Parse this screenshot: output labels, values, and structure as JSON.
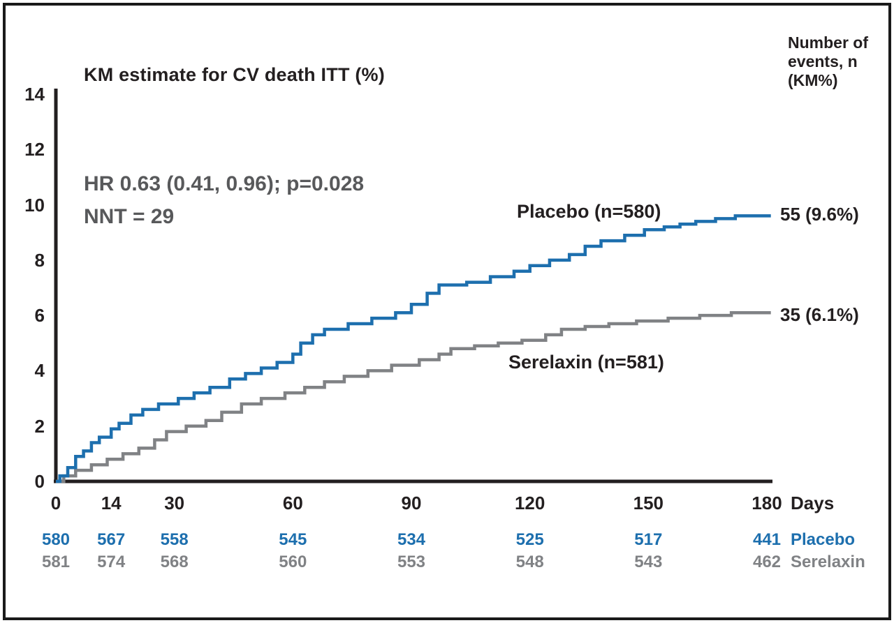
{
  "title": "KM estimate for CV death ITT (%)",
  "events_header": {
    "lines": [
      "Number of",
      "events, n",
      "(KM%)"
    ]
  },
  "stats": {
    "hr_line": "HR 0.63 (0.41, 0.96); p=0.028",
    "nnt_line": "NNT = 29"
  },
  "colors": {
    "placebo_blue": "#1d6fae",
    "serelaxin_gray": "#808285",
    "axis_black": "#231f20",
    "stat_gray": "#58595b",
    "frame_black": "#1a1a1a"
  },
  "chart_data": {
    "type": "line",
    "subtype": "kaplan-meier-step",
    "title": "KM estimate for CV death ITT (%)",
    "xlabel": "Days",
    "ylabel": "KM estimate for CV death ITT (%)",
    "xlim": [
      0,
      183
    ],
    "ylim": [
      0,
      14
    ],
    "x_ticks": [
      0,
      14,
      30,
      60,
      90,
      120,
      150,
      180
    ],
    "y_ticks": [
      0,
      2,
      4,
      6,
      8,
      10,
      12,
      14
    ],
    "grid": false,
    "legend_position": "in-plot labels + risk-table right",
    "series": [
      {
        "name": "Placebo",
        "curve_label": "Placebo (n=580)",
        "end_label": "55 (9.6%)",
        "color": "#1d6fae",
        "points": [
          [
            0,
            0
          ],
          [
            1,
            0.2
          ],
          [
            3,
            0.5
          ],
          [
            5,
            0.9
          ],
          [
            7,
            1.1
          ],
          [
            9,
            1.4
          ],
          [
            11,
            1.6
          ],
          [
            14,
            1.9
          ],
          [
            16,
            2.1
          ],
          [
            19,
            2.4
          ],
          [
            22,
            2.6
          ],
          [
            26,
            2.8
          ],
          [
            31,
            3.0
          ],
          [
            35,
            3.2
          ],
          [
            39,
            3.4
          ],
          [
            44,
            3.7
          ],
          [
            48,
            3.9
          ],
          [
            52,
            4.1
          ],
          [
            56,
            4.3
          ],
          [
            60,
            4.6
          ],
          [
            62,
            5.0
          ],
          [
            65,
            5.3
          ],
          [
            68,
            5.5
          ],
          [
            74,
            5.7
          ],
          [
            80,
            5.9
          ],
          [
            86,
            6.1
          ],
          [
            90,
            6.4
          ],
          [
            94,
            6.8
          ],
          [
            97,
            7.1
          ],
          [
            104,
            7.2
          ],
          [
            110,
            7.4
          ],
          [
            116,
            7.6
          ],
          [
            120,
            7.8
          ],
          [
            125,
            8.0
          ],
          [
            130,
            8.2
          ],
          [
            134,
            8.5
          ],
          [
            138,
            8.7
          ],
          [
            144,
            8.9
          ],
          [
            149,
            9.1
          ],
          [
            154,
            9.2
          ],
          [
            158,
            9.3
          ],
          [
            162,
            9.4
          ],
          [
            167,
            9.5
          ],
          [
            172,
            9.6
          ],
          [
            181,
            9.6
          ]
        ]
      },
      {
        "name": "Serelaxin",
        "curve_label": "Serelaxin (n=581)",
        "end_label": "35 (6.1%)",
        "color": "#808285",
        "points": [
          [
            0,
            0
          ],
          [
            2,
            0.2
          ],
          [
            5,
            0.4
          ],
          [
            9,
            0.6
          ],
          [
            13,
            0.8
          ],
          [
            17,
            1.0
          ],
          [
            21,
            1.2
          ],
          [
            25,
            1.5
          ],
          [
            28,
            1.8
          ],
          [
            33,
            2.0
          ],
          [
            38,
            2.2
          ],
          [
            42,
            2.5
          ],
          [
            47,
            2.8
          ],
          [
            52,
            3.0
          ],
          [
            58,
            3.2
          ],
          [
            63,
            3.4
          ],
          [
            68,
            3.6
          ],
          [
            73,
            3.8
          ],
          [
            79,
            4.0
          ],
          [
            85,
            4.2
          ],
          [
            92,
            4.4
          ],
          [
            97,
            4.6
          ],
          [
            100,
            4.8
          ],
          [
            106,
            4.9
          ],
          [
            112,
            5.0
          ],
          [
            118,
            5.1
          ],
          [
            124,
            5.3
          ],
          [
            128,
            5.5
          ],
          [
            134,
            5.6
          ],
          [
            140,
            5.7
          ],
          [
            147,
            5.8
          ],
          [
            155,
            5.9
          ],
          [
            163,
            6.0
          ],
          [
            171,
            6.1
          ],
          [
            181,
            6.1
          ]
        ]
      }
    ],
    "at_risk_table": {
      "days": [
        0,
        14,
        30,
        60,
        90,
        120,
        150,
        180
      ],
      "rows": [
        {
          "name": "Placebo",
          "color": "#1d6fae",
          "values": [
            580,
            567,
            558,
            545,
            534,
            525,
            517,
            441
          ]
        },
        {
          "name": "Serelaxin",
          "color": "#808285",
          "values": [
            581,
            574,
            568,
            560,
            553,
            548,
            543,
            462
          ]
        }
      ]
    }
  }
}
